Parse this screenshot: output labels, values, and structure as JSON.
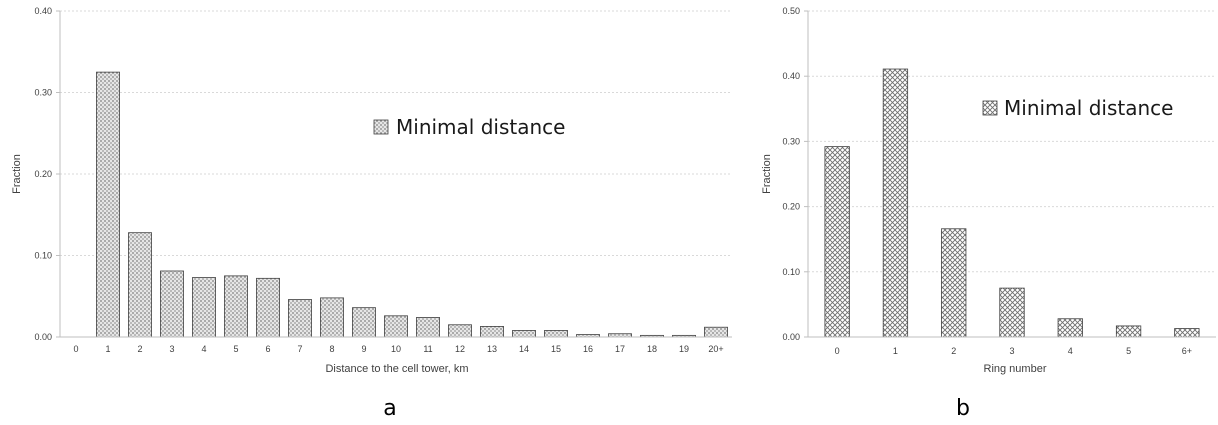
{
  "colors": {
    "axis": "#bfbfbf",
    "grid": "#d9d9d9",
    "bar_stroke": "#404040",
    "bar_pattern_fill": "#b3b3b3"
  },
  "chart_data": [
    {
      "id": "a",
      "type": "bar",
      "panel_label": "a",
      "xlabel": "Distance to the cell tower, km",
      "ylabel": "Fraction",
      "ylim": [
        0,
        0.4
      ],
      "yticks": [
        "0.00",
        "0.10",
        "0.20",
        "0.30",
        "0.40"
      ],
      "grid": "dotted horizontal",
      "pattern": "dots",
      "legend": {
        "label": "Minimal distance",
        "position": "upper-middle-right"
      },
      "categories": [
        "0",
        "1",
        "2",
        "3",
        "4",
        "5",
        "6",
        "7",
        "8",
        "9",
        "10",
        "11",
        "12",
        "13",
        "14",
        "15",
        "16",
        "17",
        "18",
        "19",
        "20+"
      ],
      "series": [
        {
          "name": "Minimal distance",
          "values": [
            0,
            0.325,
            0.128,
            0.081,
            0.073,
            0.075,
            0.072,
            0.046,
            0.048,
            0.036,
            0.026,
            0.024,
            0.015,
            0.013,
            0.008,
            0.008,
            0.003,
            0.004,
            0.002,
            0.002,
            0.012
          ]
        }
      ]
    },
    {
      "id": "b",
      "type": "bar",
      "panel_label": "b",
      "xlabel": "Ring number",
      "ylabel": "Fraction",
      "ylim": [
        0,
        0.5
      ],
      "yticks": [
        "0.00",
        "0.10",
        "0.20",
        "0.30",
        "0.40",
        "0.50"
      ],
      "grid": "dotted horizontal",
      "pattern": "crosshatch",
      "legend": {
        "label": "Minimal distance",
        "position": "upper-right"
      },
      "categories": [
        "0",
        "1",
        "2",
        "3",
        "4",
        "5",
        "6+"
      ],
      "series": [
        {
          "name": "Minimal distance",
          "values": [
            0.292,
            0.411,
            0.166,
            0.075,
            0.028,
            0.017,
            0.013
          ]
        }
      ]
    }
  ]
}
